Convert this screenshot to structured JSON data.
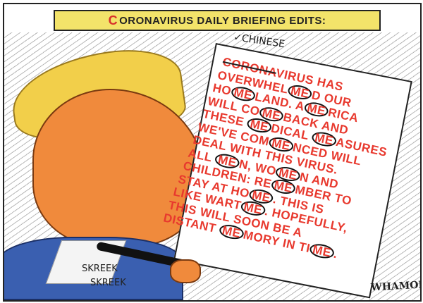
{
  "banner": {
    "c": "C",
    "title": "ORONAVIRUS DAILY BRIEFING EDITS:"
  },
  "paper": {
    "insert": "✓CHINESE",
    "crossed": "CORONA",
    "lines": [
      [
        "",
        "",
        "VIRUS HAS"
      ],
      [
        "OVERWHEL",
        "ME",
        "D OUR"
      ],
      [
        "HO",
        "ME",
        "LAND. A",
        "ME",
        "RICA"
      ],
      [
        "WILL CO",
        "ME",
        "BACK AND"
      ],
      [
        "THESE ",
        "ME",
        "DICAL ",
        "ME",
        "ASURES"
      ],
      [
        "WE'VE COM",
        "ME",
        "NCED WILL"
      ],
      [
        "DEAL WITH THIS VIRUS."
      ],
      [
        "ALL ",
        "ME",
        "N, WO",
        "ME",
        "N AND"
      ],
      [
        "CHILDREN: RE",
        "ME",
        "MBER TO"
      ],
      [
        "STAY AT HO",
        "ME",
        ". THIS IS"
      ],
      [
        "LIKE WART",
        "ME",
        ". HOPEFULLY,"
      ],
      [
        "THIS WILL SOON BE A"
      ],
      [
        "DISTANT ",
        "ME",
        "MORY IN TI",
        "ME",
        "."
      ]
    ]
  },
  "sfx": {
    "line1": "SKREEK",
    "line2": "SKREEK"
  },
  "signature": "WHAMOND",
  "colors": {
    "banner": "#f3e36a",
    "text": "#e8392e",
    "suit": "#3a5fb0",
    "skin": "#f08a3c",
    "hair": "#f2cf4a"
  }
}
